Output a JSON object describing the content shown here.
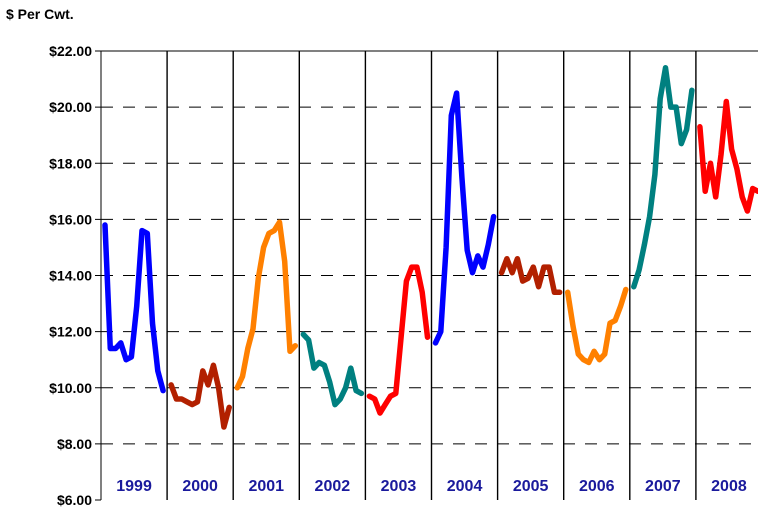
{
  "chart_data": {
    "type": "line",
    "title": "",
    "ylabel": "$ Per Cwt.",
    "xlabel": "",
    "ylim": [
      6,
      22
    ],
    "yticks": [
      {
        "value": 22,
        "label": "$22.00"
      },
      {
        "value": 20,
        "label": "$20.00"
      },
      {
        "value": 18,
        "label": "$18.00"
      },
      {
        "value": 16,
        "label": "$16.00"
      },
      {
        "value": 14,
        "label": "$14.00"
      },
      {
        "value": 12,
        "label": "$12.00"
      },
      {
        "value": 10,
        "label": "$10.00"
      },
      {
        "value": 8,
        "label": "$8.00"
      },
      {
        "value": 6,
        "label": "$6.00"
      }
    ],
    "grid": "horizontal dashed at each y tick; solid vertical separators between years",
    "legend": "none",
    "year_label_color": "#1a1a9c",
    "series": [
      {
        "year": "1999",
        "color": "#0000ff",
        "values": [
          15.8,
          11.4,
          11.4,
          11.6,
          11.0,
          11.1,
          12.9,
          15.6,
          15.5,
          12.3,
          10.6,
          9.9
        ]
      },
      {
        "year": "2000",
        "color": "#b22000",
        "values": [
          10.1,
          9.6,
          9.6,
          9.5,
          9.4,
          9.5,
          10.6,
          10.1,
          10.8,
          10.0,
          8.6,
          9.3
        ]
      },
      {
        "year": "2001",
        "color": "#ff8000",
        "values": [
          10.0,
          10.4,
          11.4,
          12.1,
          13.9,
          15.0,
          15.5,
          15.6,
          15.9,
          14.5,
          11.3,
          11.5
        ]
      },
      {
        "year": "2002",
        "color": "#008080",
        "values": [
          11.9,
          11.7,
          10.7,
          10.9,
          10.8,
          10.2,
          9.4,
          9.6,
          10.0,
          10.7,
          9.9,
          9.8
        ]
      },
      {
        "year": "2003",
        "color": "#ff0000",
        "values": [
          9.7,
          9.6,
          9.1,
          9.4,
          9.7,
          9.8,
          11.8,
          13.8,
          14.3,
          14.3,
          13.4,
          11.8
        ]
      },
      {
        "year": "2004",
        "color": "#0000ff",
        "values": [
          11.6,
          12.0,
          15.0,
          19.7,
          20.5,
          17.5,
          14.9,
          14.1,
          14.7,
          14.3,
          15.1,
          16.1
        ]
      },
      {
        "year": "2005",
        "color": "#b22000",
        "values": [
          14.1,
          14.6,
          14.1,
          14.6,
          13.8,
          13.9,
          14.3,
          13.6,
          14.3,
          14.3,
          13.4,
          13.4
        ]
      },
      {
        "year": "2006",
        "color": "#ff8000",
        "values": [
          13.4,
          12.2,
          11.2,
          11.0,
          10.9,
          11.3,
          11.0,
          11.2,
          12.3,
          12.4,
          12.9,
          13.5
        ]
      },
      {
        "year": "2007",
        "color": "#008080",
        "values": [
          13.6,
          14.2,
          15.1,
          16.1,
          17.6,
          20.3,
          21.4,
          20.0,
          20.0,
          18.7,
          19.2,
          20.6
        ]
      },
      {
        "year": "2008",
        "color": "#ff0000",
        "values": [
          19.3,
          17.0,
          18.0,
          16.8,
          18.3,
          20.2,
          18.5,
          17.8,
          16.8,
          16.3,
          17.1,
          17.0
        ]
      }
    ]
  }
}
